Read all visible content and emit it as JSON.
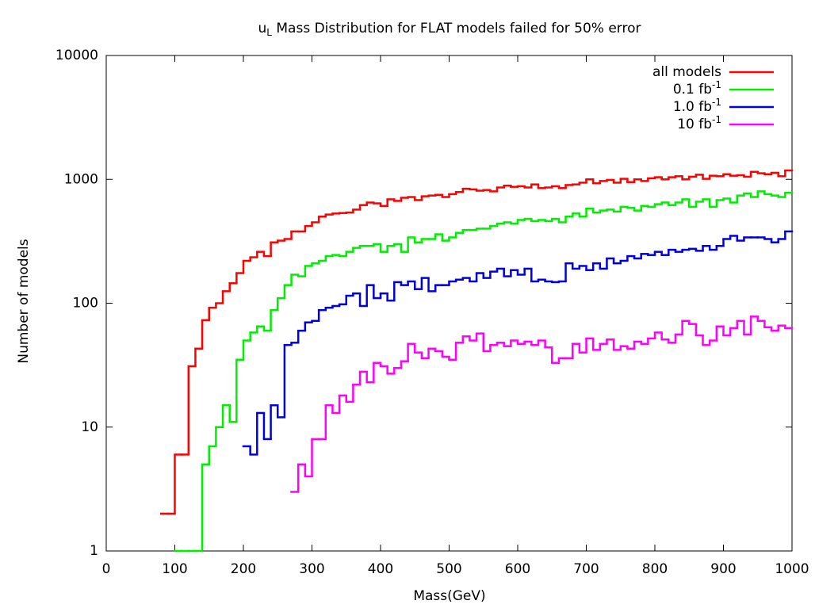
{
  "chart_data": {
    "type": "step",
    "title": {
      "base": "u",
      "sub": "L",
      "rest": " Mass Distribution for FLAT models failed for 50% error"
    },
    "x_label": "Mass(GeV)",
    "y_label": "Number of models",
    "xlim": [
      0,
      1000
    ],
    "xticks": [
      0,
      100,
      200,
      300,
      400,
      500,
      600,
      700,
      800,
      900,
      1000
    ],
    "ylim": [
      1,
      10000
    ],
    "yticks": [
      1,
      10,
      100,
      1000,
      10000
    ],
    "log_y": true,
    "legend": "top-right",
    "x": [
      85,
      95,
      105,
      115,
      125,
      135,
      145,
      155,
      165,
      175,
      185,
      195,
      205,
      215,
      225,
      235,
      245,
      255,
      265,
      275,
      285,
      295,
      305,
      315,
      325,
      335,
      345,
      355,
      365,
      375,
      385,
      395,
      405,
      415,
      425,
      435,
      445,
      455,
      465,
      475,
      485,
      495,
      505,
      515,
      525,
      535,
      545,
      555,
      565,
      575,
      585,
      595,
      605,
      615,
      625,
      635,
      645,
      655,
      665,
      675,
      685,
      695,
      705,
      715,
      725,
      735,
      745,
      755,
      765,
      775,
      785,
      795,
      805,
      815,
      825,
      835,
      845,
      855,
      865,
      875,
      885,
      895,
      905,
      915,
      925,
      935,
      945,
      955,
      965,
      975,
      985,
      995
    ],
    "series": [
      {
        "name": "all models",
        "color": "#ff0000",
        "values": [
          2,
          2,
          6,
          6,
          31,
          43,
          73,
          92,
          100,
          125,
          145,
          175,
          220,
          235,
          260,
          240,
          310,
          320,
          330,
          380,
          380,
          420,
          450,
          500,
          520,
          530,
          535,
          540,
          570,
          620,
          650,
          640,
          610,
          690,
          670,
          710,
          720,
          680,
          730,
          740,
          750,
          720,
          760,
          790,
          840,
          830,
          810,
          820,
          800,
          860,
          890,
          870,
          880,
          860,
          910,
          850,
          860,
          880,
          850,
          900,
          910,
          940,
          1000,
          930,
          970,
          990,
          940,
          1010,
          950,
          1000,
          970,
          1020,
          1040,
          1000,
          1040,
          1060,
          1000,
          1050,
          1090,
          1010,
          1070,
          1060,
          1100,
          1070,
          1080,
          1050,
          1150,
          1120,
          1100,
          1130,
          1060,
          1180
        ]
      },
      {
        "name": "0.1 fb",
        "name_sup": "-1",
        "color": "#00ee00",
        "values": [
          null,
          null,
          1,
          1,
          1,
          1,
          5,
          7,
          10,
          15,
          11,
          35,
          50,
          58,
          65,
          60,
          88,
          110,
          140,
          170,
          165,
          200,
          210,
          220,
          240,
          245,
          240,
          260,
          280,
          290,
          290,
          300,
          260,
          290,
          300,
          260,
          340,
          310,
          330,
          330,
          360,
          320,
          340,
          370,
          390,
          390,
          400,
          400,
          420,
          440,
          450,
          440,
          470,
          480,
          460,
          470,
          460,
          480,
          450,
          500,
          530,
          500,
          580,
          540,
          560,
          570,
          550,
          600,
          590,
          560,
          610,
          600,
          630,
          650,
          620,
          650,
          690,
          600,
          660,
          690,
          600,
          680,
          700,
          650,
          740,
          770,
          720,
          800,
          760,
          740,
          720,
          780
        ]
      },
      {
        "name": "1.0 fb",
        "name_sup": "-1",
        "color": "#0000dd",
        "values": [
          null,
          null,
          null,
          null,
          null,
          null,
          null,
          null,
          null,
          null,
          null,
          null,
          7,
          6,
          13,
          8,
          15,
          12,
          46,
          48,
          60,
          70,
          72,
          88,
          92,
          95,
          98,
          115,
          120,
          95,
          140,
          110,
          120,
          105,
          148,
          140,
          150,
          130,
          160,
          125,
          140,
          140,
          150,
          155,
          160,
          150,
          175,
          160,
          180,
          190,
          165,
          185,
          170,
          190,
          150,
          155,
          150,
          148,
          150,
          210,
          190,
          200,
          185,
          210,
          190,
          230,
          210,
          220,
          240,
          230,
          250,
          245,
          260,
          245,
          270,
          260,
          270,
          275,
          265,
          290,
          270,
          290,
          330,
          350,
          320,
          340,
          340,
          340,
          330,
          310,
          330,
          380
        ]
      },
      {
        "name": "10 fb",
        "name_sup": "-1",
        "color": "#ff00ff",
        "values": [
          null,
          null,
          null,
          null,
          null,
          null,
          null,
          null,
          null,
          null,
          null,
          null,
          null,
          null,
          null,
          null,
          null,
          null,
          null,
          3,
          5,
          4,
          8,
          8,
          15,
          13,
          18,
          16,
          22,
          28,
          23,
          33,
          31,
          27,
          30,
          34,
          47,
          40,
          36,
          43,
          41,
          37,
          35,
          48,
          54,
          50,
          57,
          41,
          46,
          48,
          45,
          50,
          47,
          49,
          46,
          50,
          44,
          33,
          36,
          36,
          47,
          40,
          52,
          42,
          47,
          51,
          42,
          45,
          43,
          49,
          47,
          52,
          58,
          51,
          48,
          56,
          72,
          68,
          55,
          46,
          50,
          65,
          55,
          63,
          72,
          56,
          78,
          72,
          64,
          60,
          66,
          63
        ]
      }
    ]
  }
}
